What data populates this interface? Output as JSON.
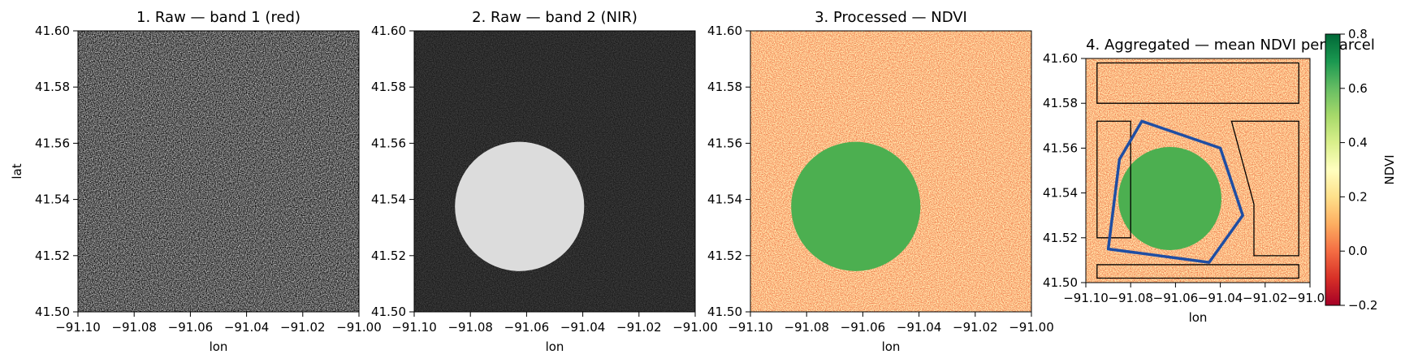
{
  "colors": {
    "parcel_outline": "#000000",
    "sample_polygon": "#1f4ea3",
    "vegetation_green": "#4caf50",
    "soil_orange": "#f4a362"
  },
  "colorbar": {
    "label": "NDVI",
    "ticks": [
      "0.8",
      "0.6",
      "0.4",
      "0.2",
      "0.0",
      "−0.2"
    ],
    "range": [
      -0.2,
      0.8
    ],
    "colormap": "RdYlGn"
  },
  "chart_data": [
    {
      "type": "heatmap",
      "title": "1. Raw — band 1 (red)",
      "xlabel": "lon",
      "ylabel": "lat",
      "xlim": [
        -91.1,
        -91.0
      ],
      "ylim": [
        41.5,
        41.6
      ],
      "colormap": "gray",
      "content": "uniform noise",
      "xticks": [
        "−91.10",
        "−91.08",
        "−91.06",
        "−91.04",
        "−91.02",
        "−91.00"
      ],
      "yticks": [
        "41.60",
        "41.58",
        "41.56",
        "41.54",
        "41.52",
        "41.50"
      ]
    },
    {
      "type": "heatmap",
      "title": "2. Raw — band 2 (NIR)",
      "xlabel": "lon",
      "ylabel": "",
      "xlim": [
        -91.1,
        -91.0
      ],
      "ylim": [
        41.5,
        41.6
      ],
      "colormap": "gray",
      "feature": {
        "shape": "circle",
        "center": [
          -91.0625,
          41.5375
        ],
        "radius": 0.023
      },
      "xticks": [
        "−91.10",
        "−91.08",
        "−91.06",
        "−91.04",
        "−91.02",
        "−91.00"
      ],
      "yticks": [
        "41.60",
        "41.58",
        "41.56",
        "41.54",
        "41.52",
        "41.50"
      ]
    },
    {
      "type": "heatmap",
      "title": "3. Processed — NDVI",
      "xlabel": "lon",
      "ylabel": "",
      "xlim": [
        -91.1,
        -91.0
      ],
      "ylim": [
        41.5,
        41.6
      ],
      "colormap": "RdYlGn",
      "feature": {
        "shape": "circle",
        "center": [
          -91.0625,
          41.5375
        ],
        "radius": 0.023
      },
      "xticks": [
        "−91.10",
        "−91.08",
        "−91.06",
        "−91.04",
        "−91.02",
        "−91.00"
      ],
      "yticks": [
        "41.60",
        "41.58",
        "41.56",
        "41.54",
        "41.52",
        "41.50"
      ]
    },
    {
      "type": "heatmap",
      "title": "4. Aggregated — mean NDVI per parcel",
      "xlabel": "lon",
      "ylabel": "",
      "xlim": [
        -91.1,
        -91.0
      ],
      "ylim": [
        41.5,
        41.6
      ],
      "colormap": "RdYlGn",
      "feature": {
        "shape": "circle",
        "center": [
          -91.0625,
          41.5375
        ],
        "radius": 0.023
      },
      "parcels": [
        [
          [
            -91.095,
            41.598
          ],
          [
            -91.005,
            41.598
          ],
          [
            -91.005,
            41.58
          ],
          [
            -91.095,
            41.58
          ]
        ],
        [
          [
            -91.095,
            41.572
          ],
          [
            -91.08,
            41.572
          ],
          [
            -91.08,
            41.52
          ],
          [
            -91.095,
            41.52
          ]
        ],
        [
          [
            -91.035,
            41.572
          ],
          [
            -91.005,
            41.572
          ],
          [
            -91.005,
            41.512
          ],
          [
            -91.025,
            41.512
          ],
          [
            -91.025,
            41.535
          ]
        ],
        [
          [
            -91.095,
            41.508
          ],
          [
            -91.005,
            41.508
          ],
          [
            -91.005,
            41.502
          ],
          [
            -91.095,
            41.502
          ]
        ]
      ],
      "polygon": [
        [
          -91.075,
          41.572
        ],
        [
          -91.04,
          41.56
        ],
        [
          -91.03,
          41.53
        ],
        [
          -91.045,
          41.509
        ],
        [
          -91.09,
          41.515
        ],
        [
          -91.085,
          41.555
        ]
      ],
      "xticks": [
        "−91.10",
        "−91.08",
        "−91.06",
        "−91.04",
        "−91.02",
        "−91.00"
      ],
      "yticks": [
        "41.60",
        "41.58",
        "41.56",
        "41.54",
        "41.52",
        "41.50"
      ]
    }
  ]
}
